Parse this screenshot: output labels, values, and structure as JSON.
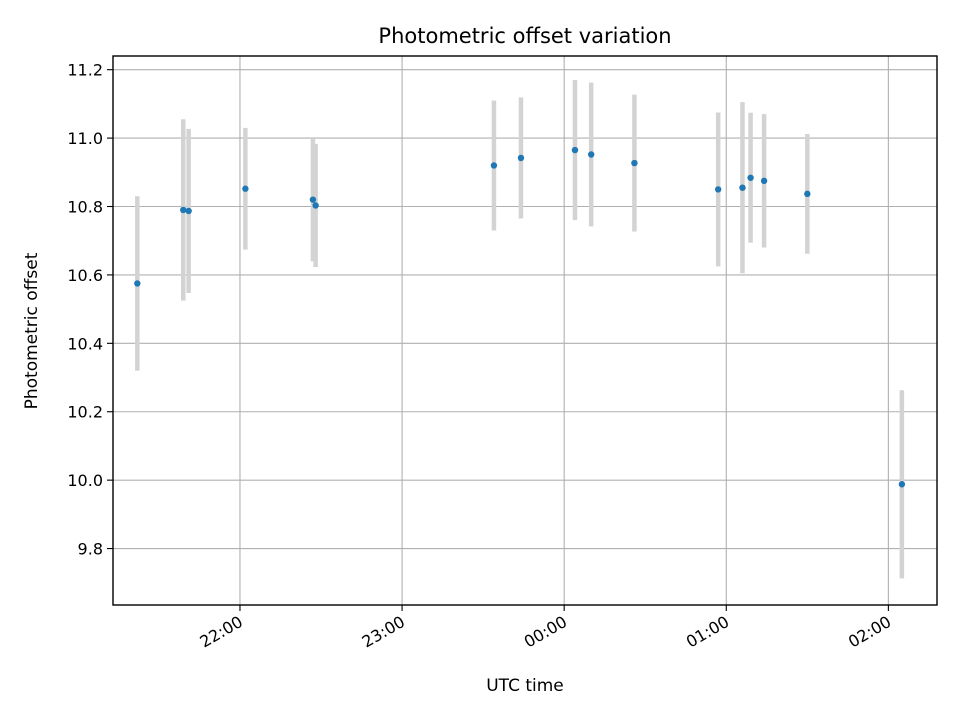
{
  "chart_data": {
    "type": "scatter",
    "title": "Photometric offset variation",
    "xlabel": "UTC time",
    "ylabel": "Photometric offset",
    "xlim": [
      "21:13",
      "02:18"
    ],
    "ylim": [
      9.635,
      11.24
    ],
    "x_ticks": [
      "22:00",
      "23:00",
      "00:00",
      "01:00",
      "02:00"
    ],
    "y_ticks": [
      "9.8",
      "10.0",
      "10.2",
      "10.4",
      "10.6",
      "10.8",
      "11.0",
      "11.2"
    ],
    "grid": true,
    "errorbar_color": "#d3d3d3",
    "marker_color": "#1f77b4",
    "points": [
      {
        "x": "21:22",
        "y": 10.575,
        "err": 0.255
      },
      {
        "x": "21:39",
        "y": 10.79,
        "err": 0.265
      },
      {
        "x": "21:41",
        "y": 10.787,
        "err": 0.24
      },
      {
        "x": "22:02",
        "y": 10.852,
        "err": 0.178
      },
      {
        "x": "22:27",
        "y": 10.82,
        "err": 0.18
      },
      {
        "x": "22:28",
        "y": 10.803,
        "err": 0.18
      },
      {
        "x": "23:34",
        "y": 10.92,
        "err": 0.19
      },
      {
        "x": "23:44",
        "y": 10.942,
        "err": 0.177
      },
      {
        "x": "00:04",
        "y": 10.965,
        "err": 0.205
      },
      {
        "x": "00:10",
        "y": 10.952,
        "err": 0.21
      },
      {
        "x": "00:26",
        "y": 10.927,
        "err": 0.2
      },
      {
        "x": "00:57",
        "y": 10.85,
        "err": 0.225
      },
      {
        "x": "01:06",
        "y": 10.855,
        "err": 0.25
      },
      {
        "x": "01:09",
        "y": 10.884,
        "err": 0.19
      },
      {
        "x": "01:14",
        "y": 10.875,
        "err": 0.195
      },
      {
        "x": "01:30",
        "y": 10.837,
        "err": 0.175
      },
      {
        "x": "02:05",
        "y": 9.988,
        "err": 0.275
      }
    ]
  }
}
